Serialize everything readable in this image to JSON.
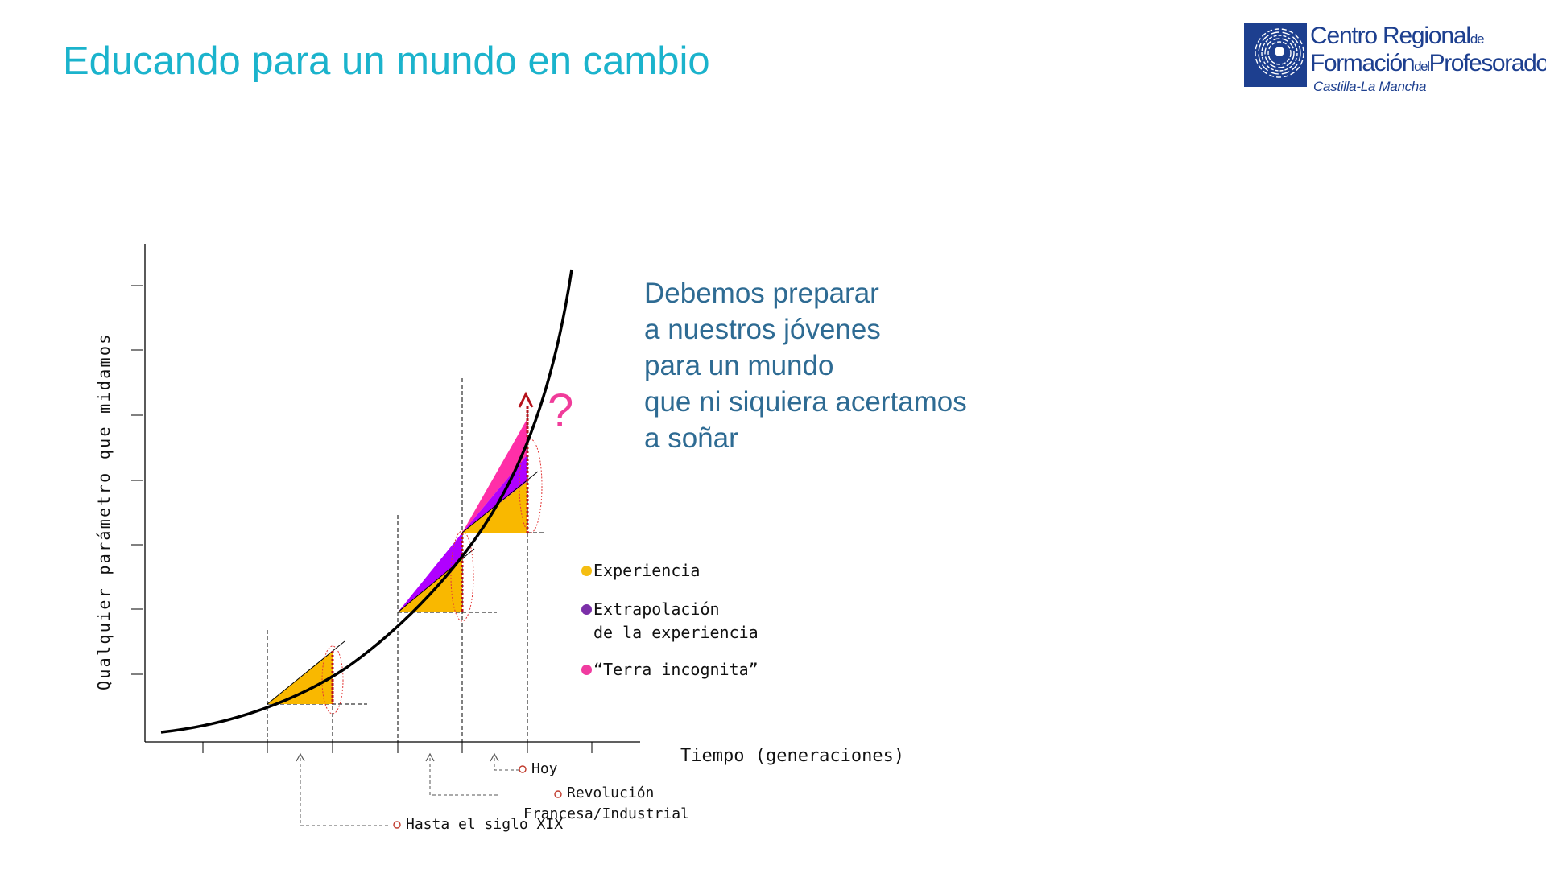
{
  "title": "Educando para un mundo en cambio",
  "logo": {
    "line1_main": "Centro Regional",
    "line1_small": "de",
    "line2_main": "Formación",
    "line2_small": "del",
    "line2_tail": "Profesorado",
    "line3": "Castilla-La Mancha",
    "color": "#1d3f8f"
  },
  "quote_lines": [
    "Debemos preparar",
    "a nuestros jóvenes",
    "para un mundo",
    "que ni siquiera acertamos",
    "a soñar"
  ],
  "diagram": {
    "y_axis_label": "Qualquier parámetro que midamos",
    "x_axis_label": "Tiempo (generaciones)",
    "question_mark": "?",
    "legend": [
      {
        "label": "Experiencia",
        "color": "#f5be12"
      },
      {
        "label": "Extrapolación",
        "label2": "de la experiencia",
        "color": "#7b2fa8"
      },
      {
        "label": "“Terra incognita”",
        "color": "#f03ca0"
      }
    ],
    "annotations": {
      "hoy": "Hoy",
      "revolucion_1": "Revolución",
      "revolucion_2": "Francesa/Industrial",
      "hasta": "Hasta el siglo XIX"
    },
    "colors": {
      "experience_fill": "#f9b800",
      "extrapolation_fill": "#b000ff",
      "terra_fill": "#ff2fa8",
      "question": "#f03c9a",
      "curve": "#000000"
    }
  }
}
